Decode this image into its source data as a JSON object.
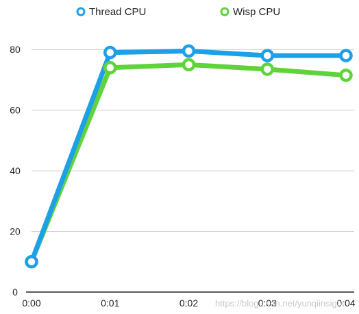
{
  "chart_data": {
    "type": "line",
    "categories": [
      "0:00",
      "0:01",
      "0:02",
      "0:03",
      "0:04"
    ],
    "series": [
      {
        "name": "Thread CPU",
        "color": "#1ea0e6",
        "values": [
          10,
          79,
          79.5,
          78,
          78
        ]
      },
      {
        "name": "Wisp CPU",
        "color": "#5fd43a",
        "values": [
          10,
          74,
          75,
          73.5,
          71.5
        ]
      }
    ],
    "yticks": [
      0,
      20,
      40,
      60,
      80
    ],
    "ylim": [
      0,
      90
    ],
    "grid": true,
    "legend": "top-center",
    "axis_color": "#222222",
    "grid_color": "#cccccc"
  },
  "watermark": "https://blog.csdn.net/yunqiinsight"
}
